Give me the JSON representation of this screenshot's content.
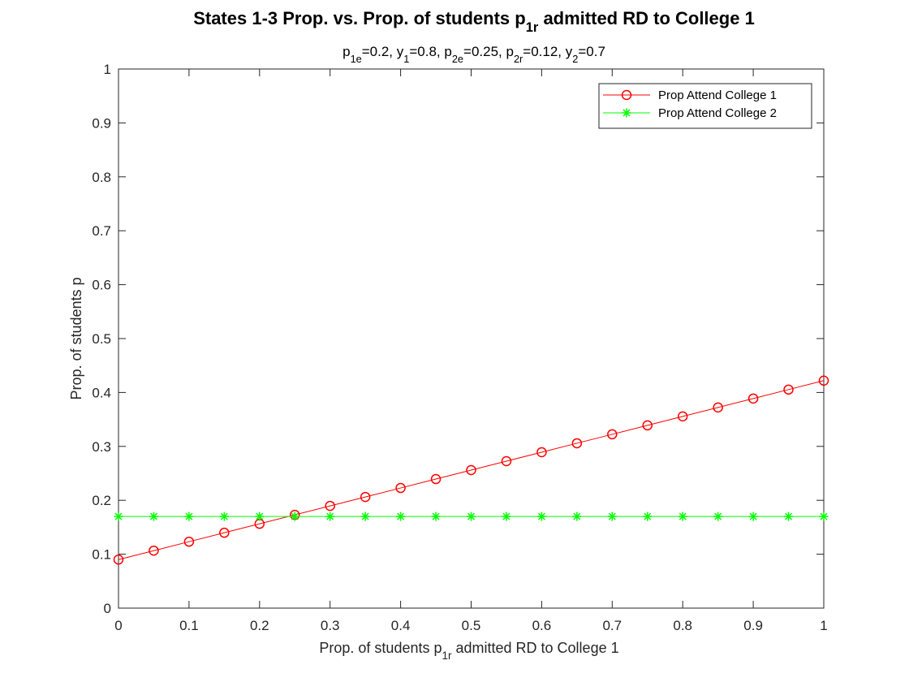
{
  "chart_data": {
    "type": "line",
    "title": {
      "pre": "States 1-3 Prop. vs. Prop. of students p",
      "sub": "1r",
      "post": " admitted RD to College 1"
    },
    "subtitle": [
      {
        "t": "p"
      },
      {
        "s": "1e"
      },
      {
        "t": "=0.2, y"
      },
      {
        "s": "1"
      },
      {
        "t": "=0.8, p"
      },
      {
        "s": "2e"
      },
      {
        "t": "=0.25, p"
      },
      {
        "s": "2r"
      },
      {
        "t": "=0.12, y"
      },
      {
        "s": "2"
      },
      {
        "t": "=0.7"
      }
    ],
    "xlabel": {
      "pre": "Prop. of students p",
      "sub": "1r",
      "post": " admitted RD to College 1"
    },
    "ylabel": "Prop. of students p",
    "xlim": [
      0,
      1
    ],
    "ylim": [
      0,
      1
    ],
    "xticks": [
      0,
      0.1,
      0.2,
      0.3,
      0.4,
      0.5,
      0.6,
      0.7,
      0.8,
      0.9,
      1
    ],
    "xtick_labels": [
      "0",
      "0.1",
      "0.2",
      "0.3",
      "0.4",
      "0.5",
      "0.6",
      "0.7",
      "0.8",
      "0.9",
      "1"
    ],
    "yticks": [
      0,
      0.1,
      0.2,
      0.3,
      0.4,
      0.5,
      0.6,
      0.7,
      0.8,
      0.9,
      1
    ],
    "ytick_labels": [
      "0",
      "0.1",
      "0.2",
      "0.3",
      "0.4",
      "0.5",
      "0.6",
      "0.7",
      "0.8",
      "0.9",
      "1"
    ],
    "grid": false,
    "legend_position": "top-right",
    "x": [
      0,
      0.05,
      0.1,
      0.15,
      0.2,
      0.25,
      0.3,
      0.35,
      0.4,
      0.45,
      0.5,
      0.55,
      0.6,
      0.65,
      0.7,
      0.75,
      0.8,
      0.85,
      0.9,
      0.95,
      1
    ],
    "series": [
      {
        "name": "Prop Attend College 1",
        "color": "#ff0000",
        "marker": "circle",
        "values": [
          0.09,
          0.1066,
          0.1232,
          0.1398,
          0.1564,
          0.173,
          0.1896,
          0.2062,
          0.2228,
          0.2394,
          0.256,
          0.2726,
          0.2892,
          0.3058,
          0.3224,
          0.339,
          0.3556,
          0.3722,
          0.3888,
          0.4054,
          0.422
        ]
      },
      {
        "name": "Prop Attend College 2",
        "color": "#00ff00",
        "marker": "asterisk",
        "values": [
          0.17,
          0.17,
          0.17,
          0.17,
          0.17,
          0.17,
          0.17,
          0.17,
          0.17,
          0.17,
          0.17,
          0.17,
          0.17,
          0.17,
          0.17,
          0.17,
          0.17,
          0.17,
          0.17,
          0.17,
          0.17
        ]
      }
    ]
  }
}
